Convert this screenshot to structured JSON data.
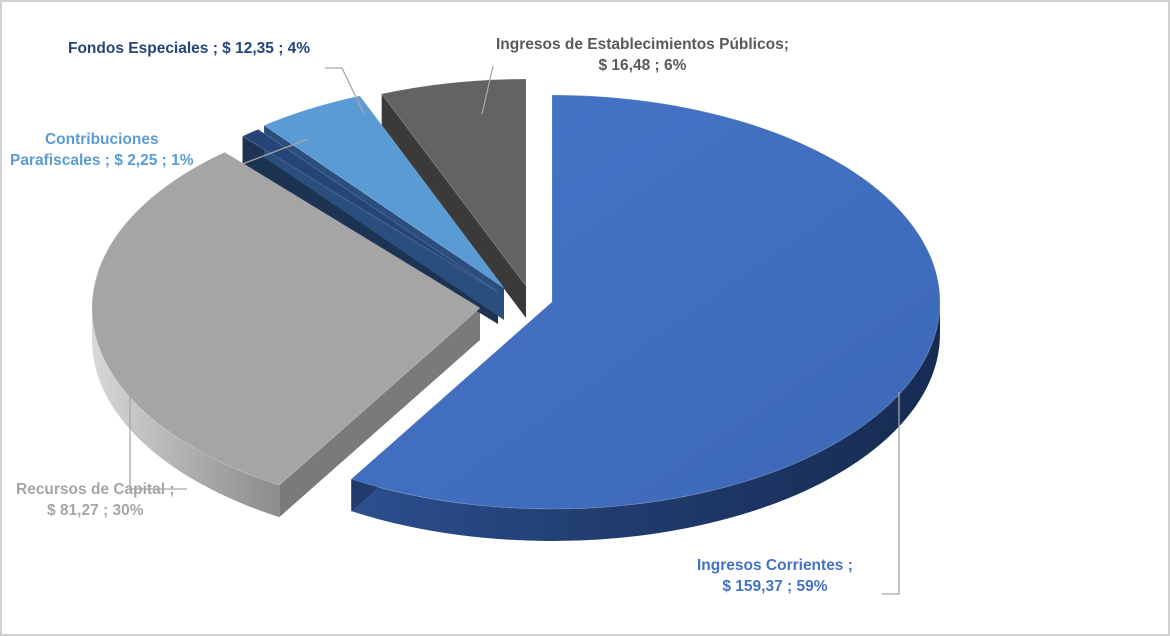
{
  "chart_data": {
    "type": "pie",
    "style": "3d-exploded",
    "slices": [
      {
        "name": "Ingresos Corrientes",
        "value": 159.37,
        "percent": 59,
        "color": "#4472c4",
        "label_line1": "Ingresos Corrientes ;",
        "label_line2": "$ 159,37 ; 59%"
      },
      {
        "name": "Recursos de Capital",
        "value": 81.27,
        "percent": 30,
        "color": "#a5a5a5",
        "label_line1": "Recursos de Capital ;",
        "label_line2": "$ 81,27 ; 30%"
      },
      {
        "name": "Contribuciones Parafiscales",
        "value": 2.25,
        "percent": 1,
        "color": "#264478",
        "label_line1": "Contribuciones",
        "label_line2": "Parafiscales ;  $ 2,25 ; 1%"
      },
      {
        "name": "Fondos Especiales",
        "value": 12.35,
        "percent": 4,
        "color": "#5b9bd5",
        "label_line1": "Fondos Especiales ;  $ 12,35 ; 4%"
      },
      {
        "name": "Ingresos de Establecimientos Públicos",
        "value": 16.48,
        "percent": 6,
        "color": "#636363",
        "label_line1": "Ingresos de Establecimientos Públicos;",
        "label_line2": "$ 16,48 ; 6%"
      }
    ],
    "label_colors": {
      "ingresos_corrientes": "#4472c4",
      "recursos_capital": "#a5a5a5",
      "contribuciones": "#5b9bd5",
      "fondos": "#264478",
      "establecimientos": "#595959"
    },
    "leader_line_color": "#a6a6a6"
  }
}
